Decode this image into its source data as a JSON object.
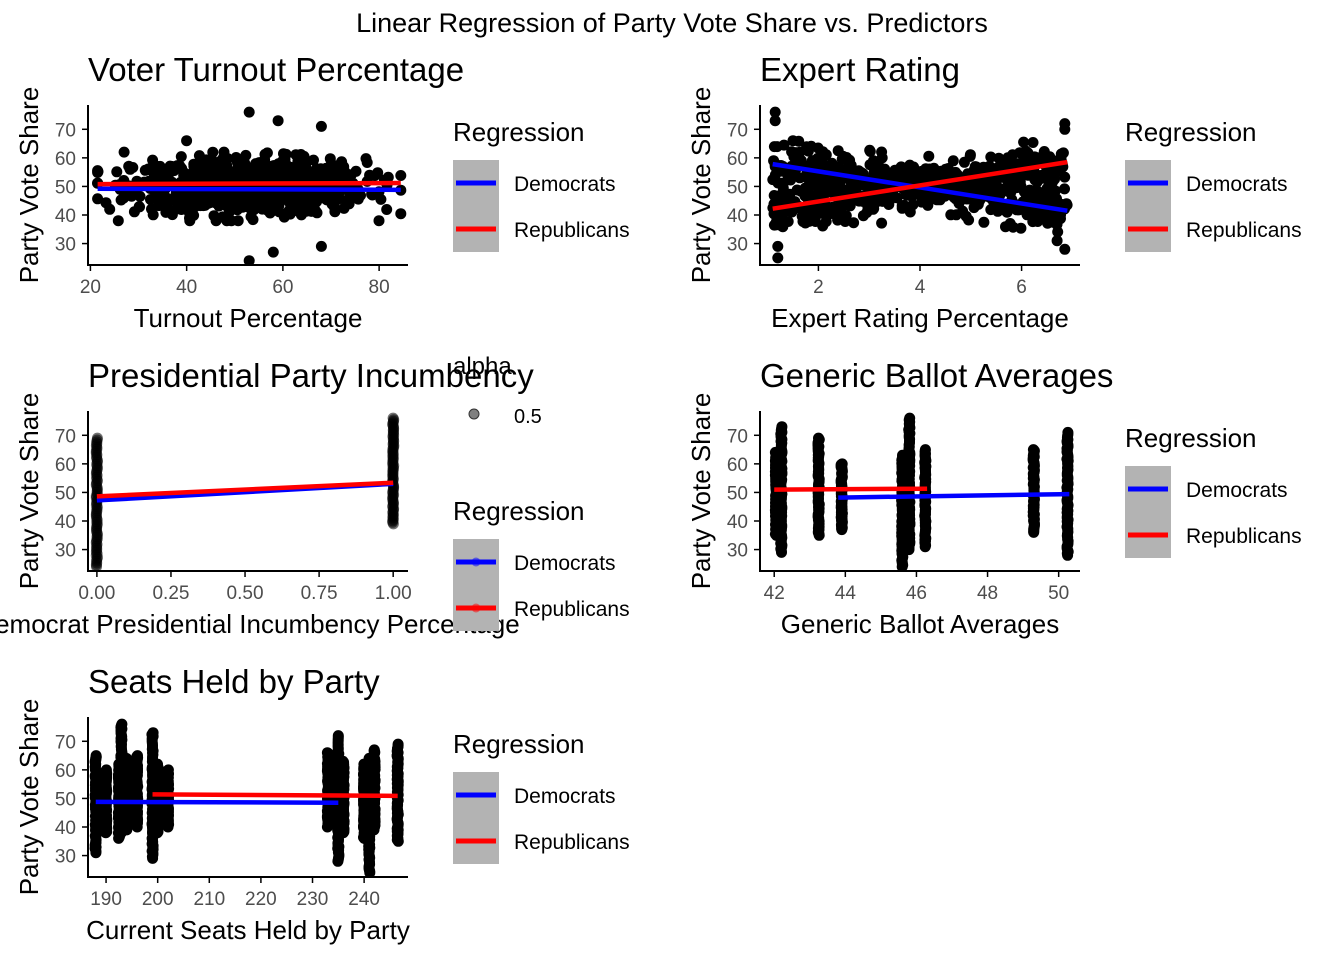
{
  "figure": {
    "title": "Linear Regression of Party Vote Share vs. Predictors"
  },
  "colors": {
    "points": "#000000",
    "democrats": "#0000ff",
    "republicans": "#ff0000",
    "legend_key_bg": "#b3b3b3",
    "axis": "#000000",
    "tick_label": "#4d4d4d"
  },
  "chart_data": [
    {
      "type": "scatter",
      "title": "Voter Turnout Percentage",
      "xlabel": "Turnout Percentage",
      "ylabel": "Party Vote Share",
      "xlim": [
        19.5,
        86
      ],
      "ylim": [
        22.5,
        78.5
      ],
      "x_ticks": [
        20,
        40,
        60,
        80
      ],
      "x_tick_labels": [
        "20",
        "40",
        "60",
        "80"
      ],
      "y_ticks": [
        30,
        40,
        50,
        60,
        70
      ],
      "y_tick_labels": [
        "30",
        "40",
        "50",
        "60",
        "70"
      ],
      "grid": false,
      "legend": {
        "position": "right",
        "title": "Regression",
        "entries": [
          {
            "label": "Democrats",
            "color": "#0000ff"
          },
          {
            "label": "Republicans",
            "color": "#ff0000"
          }
        ]
      },
      "regression_lines": [
        {
          "name": "Democrats",
          "color": "#0000ff",
          "x": [
            21.5,
            84.5
          ],
          "y": [
            49.2,
            48.8
          ]
        },
        {
          "name": "Republicans",
          "color": "#ff0000",
          "x": [
            21.5,
            84.5
          ],
          "y": [
            50.8,
            51.2
          ]
        }
      ],
      "points": {
        "kind": "continuous",
        "x_center": 53,
        "x_spread": 12,
        "x_min": 21.5,
        "x_max": 84.5,
        "y_center": 50,
        "y_spread": 4.8,
        "count": 900,
        "outliers": [
          [
            53,
            76
          ],
          [
            59,
            73
          ],
          [
            68,
            71
          ],
          [
            53,
            24
          ],
          [
            58,
            27
          ],
          [
            68,
            29
          ],
          [
            27,
            62
          ],
          [
            40,
            66
          ],
          [
            24,
            42
          ]
        ]
      }
    },
    {
      "type": "scatter",
      "title": "Expert Rating",
      "xlabel": "Expert Rating Percentage",
      "ylabel": "Party Vote Share",
      "xlim": [
        0.85,
        7.15
      ],
      "ylim": [
        22.5,
        78.5
      ],
      "x_ticks": [
        2,
        4,
        6
      ],
      "x_tick_labels": [
        "2",
        "4",
        "6"
      ],
      "y_ticks": [
        30,
        40,
        50,
        60,
        70
      ],
      "y_tick_labels": [
        "30",
        "40",
        "50",
        "60",
        "70"
      ],
      "grid": false,
      "legend": {
        "position": "right",
        "title": "Regression",
        "entries": [
          {
            "label": "Democrats",
            "color": "#0000ff"
          },
          {
            "label": "Republicans",
            "color": "#ff0000"
          }
        ]
      },
      "regression_lines": [
        {
          "name": "Democrats",
          "color": "#0000ff",
          "x": [
            1.1,
            6.9
          ],
          "y": [
            57.8,
            41.5
          ]
        },
        {
          "name": "Republicans",
          "color": "#ff0000",
          "x": [
            1.1,
            6.9
          ],
          "y": [
            42.2,
            58.5
          ]
        }
      ],
      "points": {
        "kind": "x_shape",
        "x_min": 1.1,
        "x_max": 6.9,
        "y_center": 50,
        "y_slope": 2.8,
        "y_spread": 3.8,
        "count": 800,
        "outliers": [
          [
            1.15,
            76
          ],
          [
            1.15,
            73
          ],
          [
            6.85,
            72
          ],
          [
            6.85,
            70
          ],
          [
            1.2,
            25
          ],
          [
            1.2,
            29
          ],
          [
            6.85,
            28
          ],
          [
            6.7,
            31
          ],
          [
            1.5,
            66
          ]
        ]
      }
    },
    {
      "type": "scatter",
      "title": "Presidential Party Incumbency",
      "xlabel": "Democrat Presidential Incumbency Percentage",
      "ylabel": "Party Vote Share",
      "xlim": [
        -0.03,
        1.05
      ],
      "ylim": [
        22.5,
        78.5
      ],
      "x_ticks": [
        0,
        0.25,
        0.5,
        0.75,
        1
      ],
      "x_tick_labels": [
        "0.00",
        "0.25",
        "0.50",
        "0.75",
        "1.00"
      ],
      "y_ticks": [
        30,
        40,
        50,
        60,
        70
      ],
      "y_tick_labels": [
        "30",
        "40",
        "50",
        "60",
        "70"
      ],
      "grid": false,
      "legend": {
        "position": "right",
        "alpha_title": "alpha",
        "alpha_label": "0.5",
        "title": "Regression",
        "entries": [
          {
            "label": "Democrats",
            "color": "#0000ff"
          },
          {
            "label": "Republicans",
            "color": "#ff0000"
          }
        ]
      },
      "regression_lines": [
        {
          "name": "Democrats",
          "color": "#0000ff",
          "x": [
            0,
            1
          ],
          "y": [
            47.2,
            53.0
          ]
        },
        {
          "name": "Republicans",
          "color": "#ff0000",
          "x": [
            0,
            1
          ],
          "y": [
            48.6,
            53.4
          ]
        }
      ],
      "points": {
        "kind": "columns",
        "columns": [
          {
            "x": 0,
            "y_min": 24,
            "y_max": 69
          },
          {
            "x": 1,
            "y_min": 39,
            "y_max": 76
          }
        ]
      }
    },
    {
      "type": "scatter",
      "title": "Generic Ballot Averages",
      "xlabel": "Generic Ballot Averages",
      "ylabel": "Party Vote Share",
      "xlim": [
        41.6,
        50.6
      ],
      "ylim": [
        22.5,
        78.5
      ],
      "x_ticks": [
        42,
        44,
        46,
        48,
        50
      ],
      "x_tick_labels": [
        "42",
        "44",
        "46",
        "48",
        "50"
      ],
      "y_ticks": [
        30,
        40,
        50,
        60,
        70
      ],
      "y_tick_labels": [
        "30",
        "40",
        "50",
        "60",
        "70"
      ],
      "grid": false,
      "legend": {
        "position": "right",
        "title": "Regression",
        "entries": [
          {
            "label": "Democrats",
            "color": "#0000ff"
          },
          {
            "label": "Republicans",
            "color": "#ff0000"
          }
        ]
      },
      "regression_lines": [
        {
          "name": "Democrats",
          "color": "#0000ff",
          "x": [
            43.8,
            50.3
          ],
          "y": [
            48.2,
            49.4
          ]
        },
        {
          "name": "Republicans",
          "color": "#ff0000",
          "x": [
            42.0,
            46.3
          ],
          "y": [
            51.0,
            51.3
          ]
        }
      ],
      "points": {
        "kind": "columns",
        "columns": [
          {
            "x": 42.05,
            "y_min": 35,
            "y_max": 64
          },
          {
            "x": 42.2,
            "y_min": 29,
            "y_max": 73
          },
          {
            "x": 43.25,
            "y_min": 35,
            "y_max": 69
          },
          {
            "x": 43.9,
            "y_min": 37,
            "y_max": 60
          },
          {
            "x": 45.6,
            "y_min": 24,
            "y_max": 63
          },
          {
            "x": 45.8,
            "y_min": 30,
            "y_max": 76
          },
          {
            "x": 46.25,
            "y_min": 31,
            "y_max": 65
          },
          {
            "x": 49.3,
            "y_min": 36,
            "y_max": 65
          },
          {
            "x": 50.25,
            "y_min": 28,
            "y_max": 71
          }
        ]
      }
    },
    {
      "type": "scatter",
      "title": "Seats Held by Party",
      "xlabel": "Current Seats Held by Party",
      "ylabel": "Party Vote Share",
      "xlim": [
        186.5,
        248.5
      ],
      "ylim": [
        22.5,
        78.5
      ],
      "x_ticks": [
        190,
        200,
        210,
        220,
        230,
        240
      ],
      "x_tick_labels": [
        "190",
        "200",
        "210",
        "220",
        "230",
        "240"
      ],
      "y_ticks": [
        30,
        40,
        50,
        60,
        70
      ],
      "y_tick_labels": [
        "30",
        "40",
        "50",
        "60",
        "70"
      ],
      "grid": false,
      "legend": {
        "position": "right",
        "title": "Regression",
        "entries": [
          {
            "label": "Democrats",
            "color": "#0000ff"
          },
          {
            "label": "Republicans",
            "color": "#ff0000"
          }
        ]
      },
      "regression_lines": [
        {
          "name": "Democrats",
          "color": "#0000ff",
          "x": [
            188,
            235
          ],
          "y": [
            48.8,
            48.5
          ]
        },
        {
          "name": "Republicans",
          "color": "#ff0000",
          "x": [
            199,
            246.5
          ],
          "y": [
            51.4,
            50.9
          ]
        }
      ],
      "points": {
        "kind": "columns",
        "columns": [
          {
            "x": 188,
            "y_min": 31,
            "y_max": 65
          },
          {
            "x": 190,
            "y_min": 38,
            "y_max": 60
          },
          {
            "x": 192.5,
            "y_min": 36,
            "y_max": 62
          },
          {
            "x": 193,
            "y_min": 38,
            "y_max": 76
          },
          {
            "x": 194,
            "y_min": 39,
            "y_max": 64
          },
          {
            "x": 196,
            "y_min": 40,
            "y_max": 65
          },
          {
            "x": 199,
            "y_min": 29,
            "y_max": 73
          },
          {
            "x": 200,
            "y_min": 38,
            "y_max": 62
          },
          {
            "x": 202,
            "y_min": 40,
            "y_max": 60
          },
          {
            "x": 233,
            "y_min": 40,
            "y_max": 66
          },
          {
            "x": 235,
            "y_min": 28,
            "y_max": 72
          },
          {
            "x": 236,
            "y_min": 38,
            "y_max": 63
          },
          {
            "x": 240,
            "y_min": 36,
            "y_max": 62
          },
          {
            "x": 241,
            "y_min": 24,
            "y_max": 64
          },
          {
            "x": 242,
            "y_min": 39,
            "y_max": 67
          },
          {
            "x": 246.5,
            "y_min": 35,
            "y_max": 69
          }
        ]
      }
    }
  ]
}
